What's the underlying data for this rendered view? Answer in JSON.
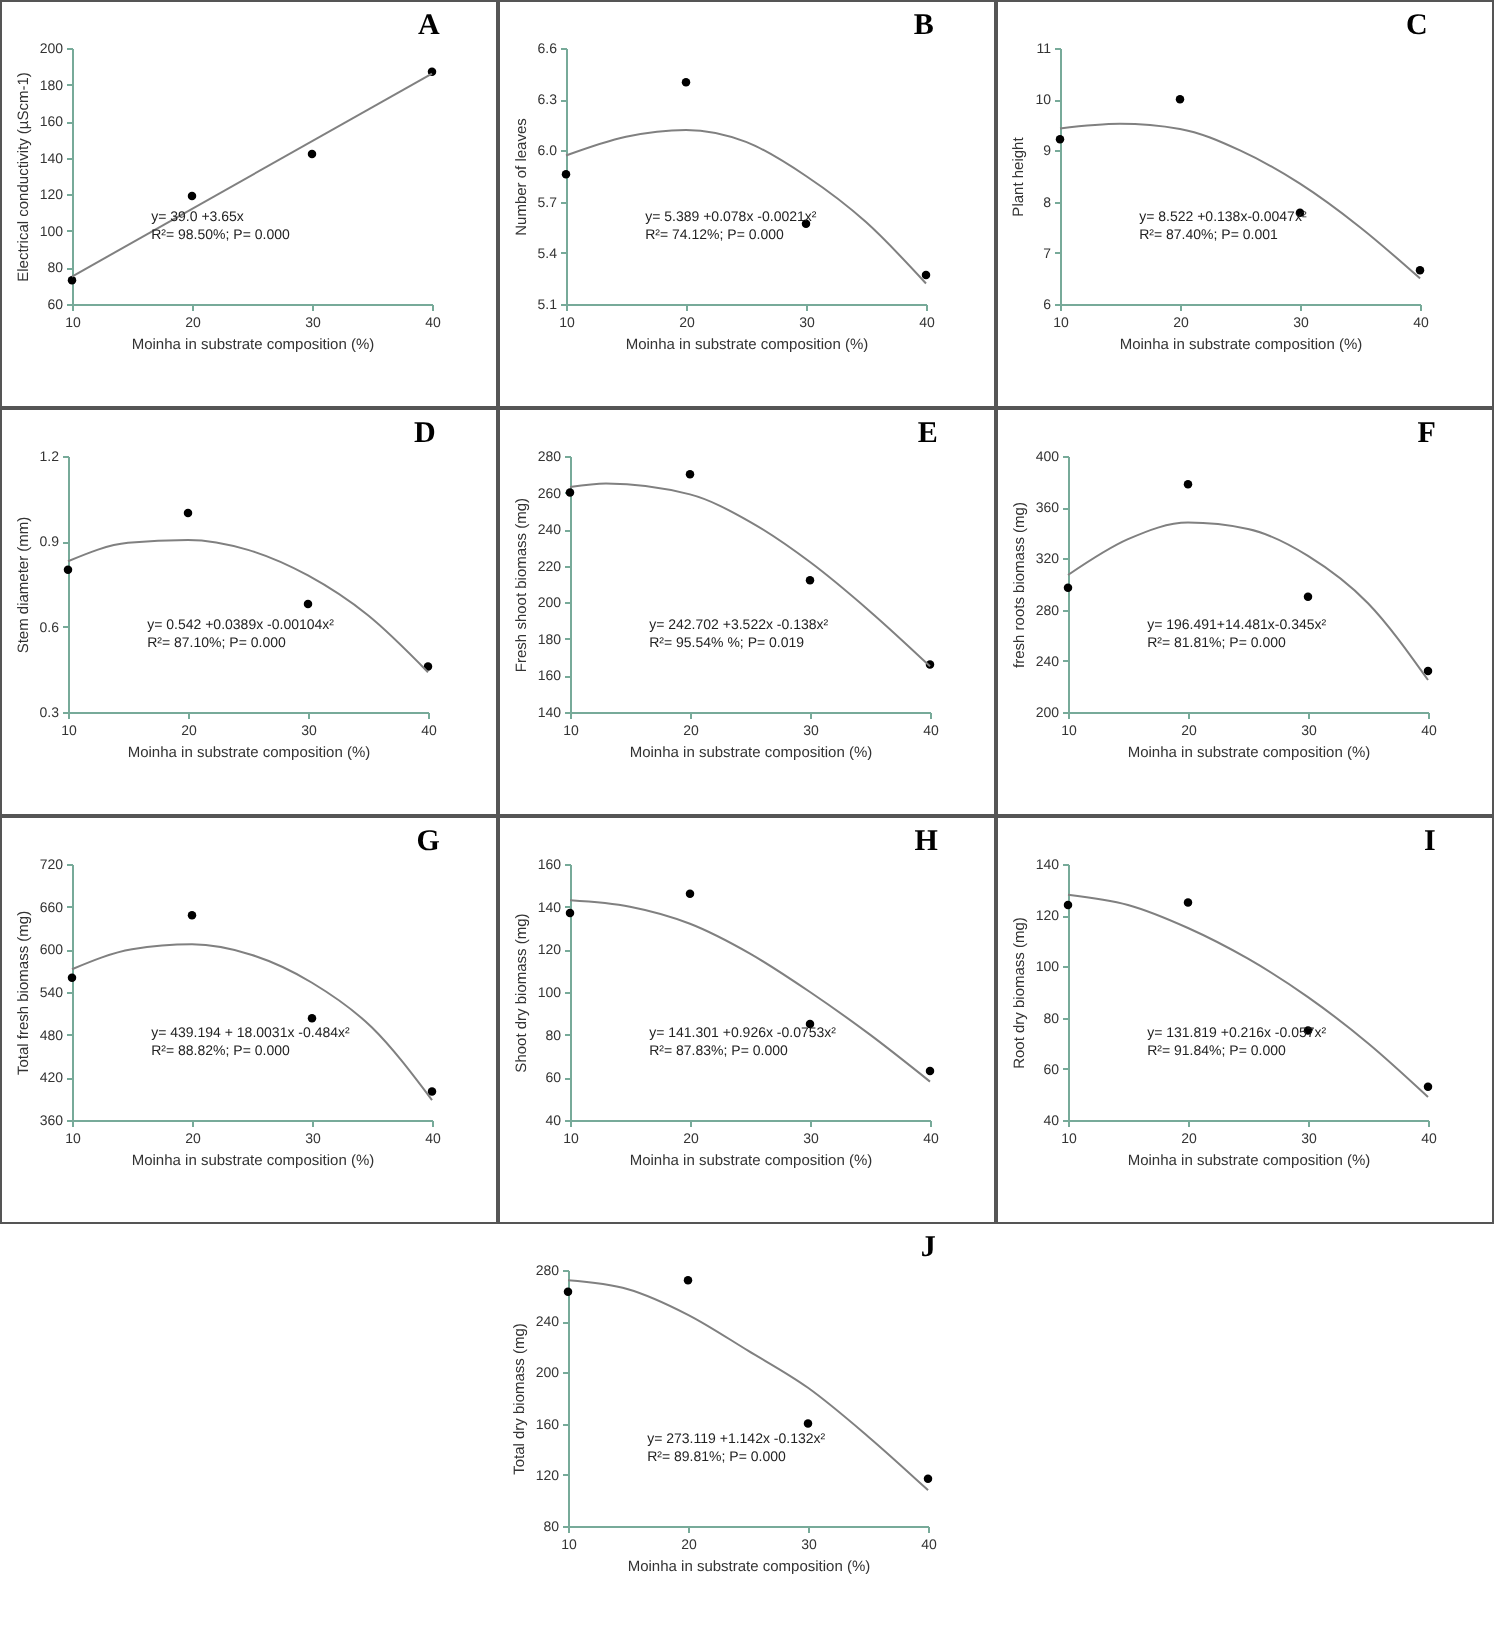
{
  "chart_data": [
    {
      "type": "scatter",
      "title": "A",
      "xlabel": "Moinha in substrate composition (%)",
      "ylabel": "Electrical conductivity (µScm-1)",
      "x": [
        10,
        20,
        30,
        40
      ],
      "xlim": [
        10,
        40
      ],
      "xticks": [
        10,
        20,
        30,
        40
      ],
      "ylim": [
        60,
        200
      ],
      "yticks": [
        60,
        80,
        100,
        120,
        140,
        160,
        180,
        200
      ],
      "annotations": [
        "y= 39.0 +3.65x",
        "R²= 98.50%; P= 0.000"
      ],
      "series": [
        {
          "type": "scatter",
          "marker": "circle",
          "color": "#000000",
          "values": [
            73,
            119,
            142,
            187
          ]
        },
        {
          "type": "line",
          "color": "#808080",
          "x": [
            10,
            40
          ],
          "values": [
            75,
            186
          ]
        }
      ]
    },
    {
      "type": "scatter",
      "title": "B",
      "xlabel": "Moinha in substrate composition (%)",
      "ylabel": "Number of leaves",
      "x": [
        10,
        20,
        30,
        40
      ],
      "xlim": [
        10,
        40
      ],
      "xticks": [
        10,
        20,
        30,
        40
      ],
      "ylim": [
        5.1,
        6.6
      ],
      "yticks": [
        5.1,
        5.4,
        5.7,
        {
          "value": 6,
          "label": "6.0"
        },
        6.3,
        6.6
      ],
      "annotations": [
        "y= 5.389 +0.078x -0.0021x²",
        "R²= 74.12%; P= 0.000"
      ],
      "series": [
        {
          "type": "scatter",
          "marker": "circle",
          "color": "#000000",
          "values": [
            5.86,
            6.4,
            5.57,
            5.27
          ]
        },
        {
          "type": "line",
          "color": "#808080",
          "x": [
            10,
            15,
            20,
            25,
            30,
            35,
            40
          ],
          "values": [
            5.97,
            6.08,
            6.12,
            6.05,
            5.85,
            5.58,
            5.22
          ]
        }
      ]
    },
    {
      "type": "scatter",
      "title": "C",
      "xlabel": "Moinha in substrate composition (%)",
      "ylabel": "Plant height",
      "x": [
        10,
        20,
        30,
        40
      ],
      "xlim": [
        10,
        40
      ],
      "xticks": [
        10,
        20,
        30,
        40
      ],
      "ylim": [
        6,
        11
      ],
      "yticks": [
        6,
        7,
        8,
        9,
        10,
        11
      ],
      "annotations": [
        "y= 8.522 +0.138x-0.0047x²",
        "R²= 87.40%; P= 0.001"
      ],
      "series": [
        {
          "type": "scatter",
          "marker": "circle",
          "color": "#000000",
          "values": [
            9.22,
            10.0,
            7.78,
            6.66
          ]
        },
        {
          "type": "line",
          "color": "#808080",
          "x": [
            10,
            15,
            20,
            25,
            30,
            35,
            40
          ],
          "values": [
            9.43,
            9.52,
            9.42,
            9.0,
            8.35,
            7.5,
            6.5
          ]
        }
      ]
    },
    {
      "type": "scatter",
      "title": "D",
      "xlabel": "Moinha in substrate composition (%)",
      "ylabel": "Stem diameter (mm)",
      "x": [
        10,
        20,
        30,
        40
      ],
      "xlim": [
        10,
        40
      ],
      "xticks": [
        10,
        20,
        30,
        40
      ],
      "ylim": [
        0.3,
        1.2
      ],
      "yticks": [
        0.3,
        0.6,
        0.9,
        1.2
      ],
      "annotations": [
        "y= 0.542 +0.0389x -0.00104x²",
        "R²= 87.10%; P= 0.000"
      ],
      "series": [
        {
          "type": "scatter",
          "marker": "circle",
          "color": "#000000",
          "values": [
            0.8,
            1.0,
            0.68,
            0.46
          ]
        },
        {
          "type": "line",
          "color": "#808080",
          "x": [
            10,
            15,
            20,
            25,
            30,
            35,
            40
          ],
          "values": [
            0.83,
            0.895,
            0.905,
            0.87,
            0.78,
            0.64,
            0.44
          ]
        }
      ]
    },
    {
      "type": "scatter",
      "title": "E",
      "xlabel": "Moinha in substrate composition (%)",
      "ylabel": "Fresh shoot biomass (mg)",
      "x": [
        10,
        20,
        30,
        40
      ],
      "xlim": [
        10,
        40
      ],
      "xticks": [
        10,
        20,
        30,
        40
      ],
      "ylim": [
        140,
        280
      ],
      "yticks": [
        140,
        160,
        180,
        200,
        220,
        240,
        260,
        280
      ],
      "annotations": [
        "y= 242.702 +3.522x -0.138x²",
        "R²= 95.54% %; P= 0.019"
      ],
      "series": [
        {
          "type": "scatter",
          "marker": "circle",
          "color": "#000000",
          "values": [
            260,
            270,
            212,
            166
          ]
        },
        {
          "type": "line",
          "color": "#808080",
          "x": [
            10,
            13,
            20,
            25,
            30,
            35,
            40
          ],
          "values": [
            263,
            265,
            259,
            244,
            222,
            195,
            165
          ]
        }
      ]
    },
    {
      "type": "scatter",
      "title": "F",
      "xlabel": "Moinha in substrate composition (%)",
      "ylabel": "fresh roots biomass (mg)",
      "x": [
        10,
        20,
        30,
        40
      ],
      "xlim": [
        10,
        40
      ],
      "xticks": [
        10,
        20,
        30,
        40
      ],
      "ylim": [
        200,
        400
      ],
      "yticks": [
        200,
        240,
        280,
        320,
        360,
        400
      ],
      "annotations": [
        "y= 196.491+14.481x-0.345x²",
        "R²= 81.81%; P= 0.000"
      ],
      "series": [
        {
          "type": "scatter",
          "marker": "circle",
          "color": "#000000",
          "values": [
            297,
            378,
            290,
            232
          ]
        },
        {
          "type": "line",
          "color": "#808080",
          "x": [
            10,
            15,
            20,
            25,
            30,
            35,
            40
          ],
          "values": [
            307,
            335,
            348,
            343,
            322,
            285,
            225
          ]
        }
      ]
    },
    {
      "type": "scatter",
      "title": "G",
      "xlabel": "Moinha in substrate composition (%)",
      "ylabel": "Total fresh biomass (mg)",
      "x": [
        10,
        20,
        30,
        40
      ],
      "xlim": [
        10,
        40
      ],
      "xticks": [
        10,
        20,
        30,
        40
      ],
      "ylim": [
        360,
        720
      ],
      "yticks": [
        360,
        420,
        480,
        540,
        600,
        660,
        720
      ],
      "annotations": [
        "y= 439.194 + 18.0031x -0.484x²",
        "R²= 88.82%; P= 0.000"
      ],
      "series": [
        {
          "type": "scatter",
          "marker": "circle",
          "color": "#000000",
          "values": [
            560,
            648,
            503,
            400
          ]
        },
        {
          "type": "line",
          "color": "#808080",
          "x": [
            10,
            15,
            20,
            25,
            30,
            35,
            40
          ],
          "values": [
            572,
            600,
            607,
            592,
            553,
            490,
            388
          ]
        }
      ]
    },
    {
      "type": "scatter",
      "title": "H",
      "xlabel": "Moinha in substrate composition (%)",
      "ylabel": "Shoot dry biomass (mg)",
      "x": [
        10,
        20,
        30,
        40
      ],
      "xlim": [
        10,
        40
      ],
      "xticks": [
        10,
        20,
        30,
        40
      ],
      "ylim": [
        40,
        160
      ],
      "yticks": [
        40,
        60,
        80,
        100,
        120,
        140,
        160
      ],
      "annotations": [
        "y= 141.301 +0.926x -0.0753x²",
        "R²= 87.83%; P= 0.000"
      ],
      "series": [
        {
          "type": "scatter",
          "marker": "circle",
          "color": "#000000",
          "values": [
            137,
            146,
            85,
            63
          ]
        },
        {
          "type": "line",
          "color": "#808080",
          "x": [
            10,
            15,
            20,
            25,
            30,
            35,
            40
          ],
          "values": [
            143,
            140,
            132,
            118,
            100,
            80,
            58
          ]
        }
      ]
    },
    {
      "type": "scatter",
      "title": "I",
      "xlabel": "Moinha in substrate composition (%)",
      "ylabel": "Root dry biomass (mg)",
      "x": [
        10,
        20,
        30,
        40
      ],
      "xlim": [
        10,
        40
      ],
      "xticks": [
        10,
        20,
        30,
        40
      ],
      "ylim": [
        40,
        140
      ],
      "yticks": [
        40,
        60,
        80,
        100,
        120,
        140
      ],
      "annotations": [
        "y= 131.819 +0.216x -0.057x²",
        "R²= 91.84%; P= 0.000"
      ],
      "series": [
        {
          "type": "scatter",
          "marker": "circle",
          "color": "#000000",
          "values": [
            124,
            125,
            75,
            53
          ]
        },
        {
          "type": "line",
          "color": "#808080",
          "x": [
            10,
            15,
            20,
            25,
            30,
            35,
            40
          ],
          "values": [
            128,
            124,
            115,
            103,
            88,
            70,
            49
          ]
        }
      ]
    },
    {
      "type": "scatter",
      "title": "J",
      "xlabel": "Moinha in substrate composition (%)",
      "ylabel": "Total dry biomass (mg)",
      "x": [
        10,
        20,
        30,
        40
      ],
      "xlim": [
        10,
        40
      ],
      "xticks": [
        10,
        20,
        30,
        40
      ],
      "ylim": [
        80,
        280
      ],
      "yticks": [
        80,
        120,
        160,
        200,
        240,
        280
      ],
      "annotations": [
        "y= 273.119 +1.142x -0.132x²",
        "R²= 89.81%; P= 0.000"
      ],
      "series": [
        {
          "type": "scatter",
          "marker": "circle",
          "color": "#000000",
          "values": [
            263,
            272,
            160,
            117
          ]
        },
        {
          "type": "line",
          "color": "#808080",
          "x": [
            10,
            15,
            20,
            25,
            30,
            35,
            40
          ],
          "values": [
            272,
            265,
            245,
            217,
            188,
            150,
            108
          ]
        }
      ]
    }
  ]
}
